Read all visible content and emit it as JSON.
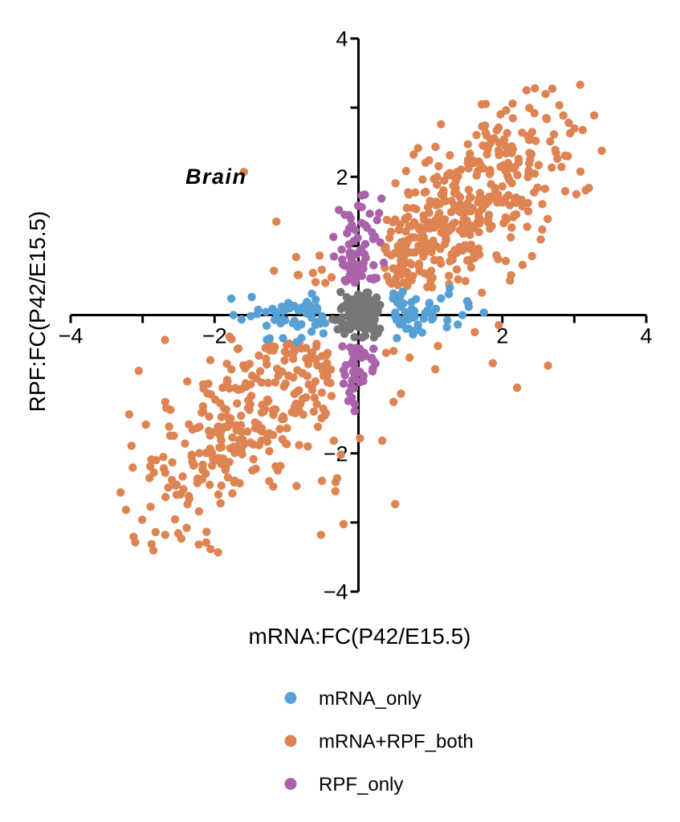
{
  "chart_data": {
    "type": "scatter",
    "title": "Brain",
    "xlabel": "mRNA:FC(P42/E15.5)",
    "ylabel": "RPF:FC(P42/E15.5)",
    "xlim": [
      -4,
      4
    ],
    "ylim": [
      -4,
      4
    ],
    "grid": false,
    "legend_position": "bottom",
    "axis_style": "center-cross",
    "axis_color": "#000000",
    "point_radius": 5.2,
    "seed": 1337,
    "x_ticks": [
      {
        "v": -4,
        "label": "−4"
      },
      {
        "v": -3
      },
      {
        "v": -2,
        "label": "−2"
      },
      {
        "v": -1
      },
      {
        "v": 1
      },
      {
        "v": 2,
        "label": "2"
      },
      {
        "v": 3
      },
      {
        "v": 4,
        "label": "4"
      }
    ],
    "y_ticks": [
      {
        "v": -4,
        "label": "−4"
      },
      {
        "v": -3
      },
      {
        "v": -2,
        "label": "−2"
      },
      {
        "v": -1
      },
      {
        "v": 1
      },
      {
        "v": 2,
        "label": "2"
      },
      {
        "v": 3
      },
      {
        "v": 4,
        "label": "4"
      }
    ],
    "series": [
      {
        "name": "mRNA+RPF_both",
        "color": "#DE8452",
        "in_legend": true,
        "gen": {
          "kind": "diagonal",
          "lobes": [
            {
              "n": 420,
              "mu": 1.35,
              "sd": 0.78
            },
            {
              "n": 330,
              "mu": -1.32,
              "sd": 0.8
            }
          ],
          "x_noise": 0.42,
          "y_noise": 0.45,
          "halo_p": 0.1,
          "halo_mult": 2.4,
          "exclude_center": [
            0.42,
            0.42
          ],
          "exclude_xstrip": [
            1.5,
            0.4
          ],
          "exclude_ystrip": [
            0.36,
            1.58
          ],
          "clip": 3.45
        }
      },
      {
        "name": "mRNA_only",
        "color": "#57A0D6",
        "in_legend": true,
        "gen": {
          "kind": "xarm",
          "n": 122,
          "min": 0.45,
          "spread": 0.5,
          "max": 2.12,
          "sy": 0.17,
          "ymax": 0.42
        }
      },
      {
        "name": "RPF_only",
        "color": "#AA62AB",
        "in_legend": true,
        "gen": {
          "kind": "yarm",
          "min": 0.45,
          "spread": 0.55,
          "sx": 0.15,
          "xmax": 0.4,
          "up": {
            "n": 72,
            "max": 2.06
          },
          "down": {
            "n": 48,
            "max": 1.52
          }
        }
      },
      {
        "name": "not_significant",
        "color": "#767676",
        "in_legend": false,
        "gen": {
          "kind": "center",
          "n": 125,
          "sx": 0.18,
          "sy": 0.17,
          "xmax": 0.36,
          "ymax": 0.34
        }
      }
    ],
    "legend_order": [
      "mRNA_only",
      "mRNA+RPF_both",
      "RPF_only"
    ]
  }
}
